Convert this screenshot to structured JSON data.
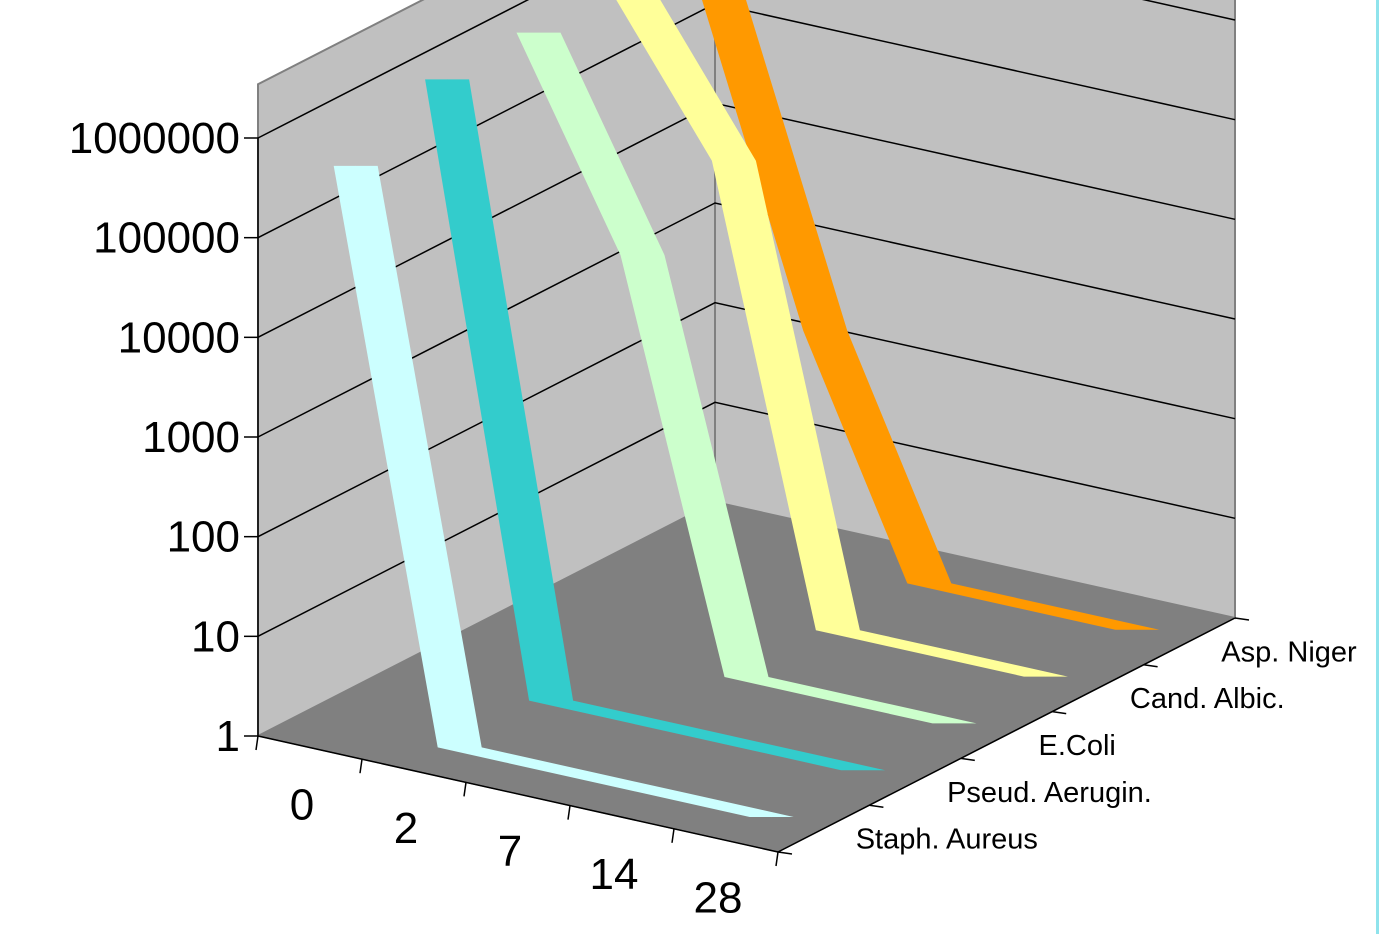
{
  "chart_data": {
    "type": "line",
    "style": "3d-ribbon",
    "title": "",
    "xlabel": "",
    "ylabel": "",
    "yscale": "log",
    "ylim": [
      1,
      1000000
    ],
    "grid": true,
    "y_ticks": [
      "1",
      "10",
      "100",
      "1000",
      "10000",
      "100000",
      "1000000"
    ],
    "categories": [
      "0",
      "2",
      "7",
      "14",
      "28"
    ],
    "series": [
      {
        "name": "Staph. Aureus",
        "color": "#ccffff",
        "values": [
          400000,
          1,
          1,
          1,
          1
        ]
      },
      {
        "name": "Pseud. Aerugin.",
        "color": "#33cccc",
        "values": [
          1000000,
          1,
          1,
          1,
          1
        ]
      },
      {
        "name": "E.Coli",
        "color": "#ccffcc",
        "values": [
          1000000,
          10000,
          1,
          1,
          1
        ]
      },
      {
        "name": "Cand. Albic.",
        "color": "#ffff99",
        "values": [
          1000000,
          30000,
          1,
          1,
          1
        ]
      },
      {
        "name": "Asp. Niger",
        "color": "#ff9900",
        "values": [
          300000,
          200,
          1,
          1,
          1
        ]
      }
    ],
    "colors": {
      "wall": "#c0c0c0",
      "floor": "#808080",
      "gridline": "#000000"
    }
  }
}
